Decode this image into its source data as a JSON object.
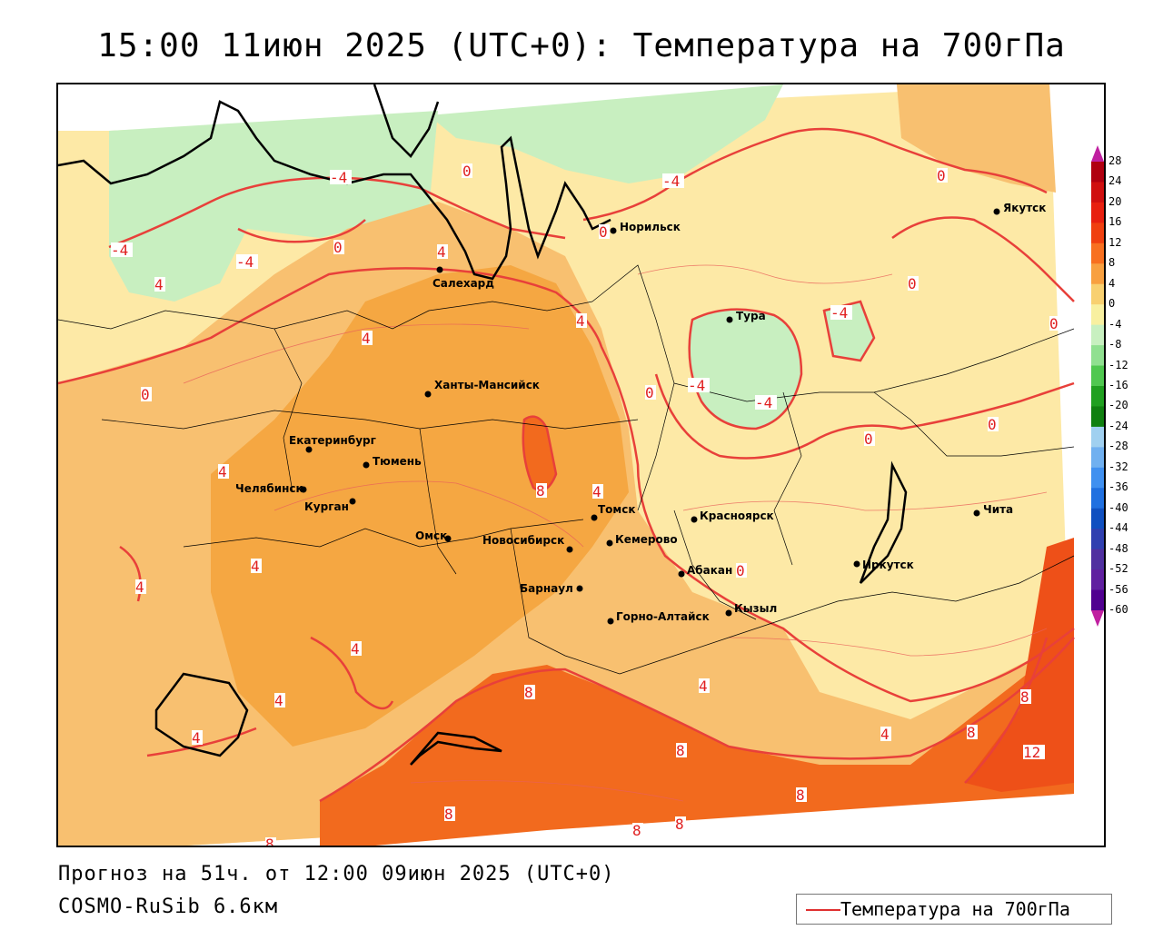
{
  "title": "15:00 11июн 2025 (UTC+0): Температура на 700гПа",
  "footer": {
    "forecast": "Прогноз на 51ч. от 12:00 09июн 2025 (UTC+0)",
    "model": "COSMO-RuSib 6.6км"
  },
  "legend": {
    "label": "Температура на 700гПа",
    "line_color": "#e03030"
  },
  "colorbar": {
    "ticks": [
      "28",
      "24",
      "20",
      "16",
      "12",
      "8",
      "4",
      "0",
      "-4",
      "-8",
      "-12",
      "-16",
      "-20",
      "-24",
      "-28",
      "-32",
      "-36",
      "-40",
      "-44",
      "-48",
      "-52",
      "-56",
      "-60"
    ],
    "colors": [
      "#b00010",
      "#d01010",
      "#e82010",
      "#f04010",
      "#f87020",
      "#f8a040",
      "#f8d070",
      "#f8f0a0",
      "#c8f0c0",
      "#90e090",
      "#50c850",
      "#20a020",
      "#108010",
      "#a0d0f0",
      "#70b0f0",
      "#4090f0",
      "#2070e0",
      "#1050c0",
      "#3040b0",
      "#5030a0",
      "#6020a0",
      "#500090",
      "#400080"
    ]
  },
  "cities": [
    {
      "name": "Якутск"
    },
    {
      "name": "Норильск"
    },
    {
      "name": "Салехард"
    },
    {
      "name": "Тура"
    },
    {
      "name": "Ханты-Мансийск"
    },
    {
      "name": "Екатеринбург"
    },
    {
      "name": "Тюмень"
    },
    {
      "name": "Челябинск"
    },
    {
      "name": "Курган"
    },
    {
      "name": "Томск"
    },
    {
      "name": "Красноярск"
    },
    {
      "name": "Омск"
    },
    {
      "name": "Новосибирск"
    },
    {
      "name": "Кемерово"
    },
    {
      "name": "Чита"
    },
    {
      "name": "Абакан"
    },
    {
      "name": "Иркутск"
    },
    {
      "name": "Барнаул"
    },
    {
      "name": "Кызыл"
    },
    {
      "name": "Горно-Алтайск"
    }
  ],
  "isotherm_labels": [
    "0",
    "-4",
    "-4",
    "-4",
    "0",
    "4",
    "0",
    "-4",
    "0",
    "0",
    "-4",
    "0",
    "4",
    "-4",
    "4",
    "0",
    "-4",
    "0",
    "4",
    "0",
    "0",
    "8",
    "4",
    "4",
    "4",
    "4",
    "4",
    "4",
    "4",
    "8",
    "0",
    "8",
    "8",
    "8",
    "8",
    "8",
    "8",
    "4",
    "8",
    "12",
    "4",
    "8"
  ]
}
